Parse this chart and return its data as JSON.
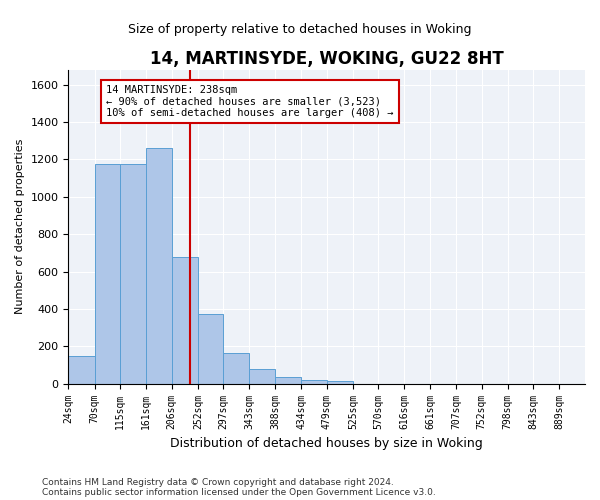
{
  "title": "14, MARTINSYDE, WOKING, GU22 8HT",
  "subtitle": "Size of property relative to detached houses in Woking",
  "xlabel": "Distribution of detached houses by size in Woking",
  "ylabel": "Number of detached properties",
  "bar_color": "#aec6e8",
  "bar_edge_color": "#5a9fd4",
  "background_color": "#eef2f8",
  "grid_color": "#ffffff",
  "annotation_text": "14 MARTINSYDE: 238sqm\n← 90% of detached houses are smaller (3,523)\n10% of semi-detached houses are larger (408) →",
  "vline_x": 238,
  "vline_color": "#cc0000",
  "bin_edges": [
    24,
    70,
    115,
    161,
    206,
    252,
    297,
    343,
    388,
    434,
    479,
    525,
    570,
    616,
    661,
    707,
    752,
    798,
    843,
    889,
    934
  ],
  "bar_heights": [
    150,
    1175,
    1175,
    1260,
    680,
    375,
    165,
    80,
    35,
    20,
    15,
    0,
    0,
    0,
    0,
    0,
    0,
    0,
    0,
    0
  ],
  "ylim": [
    0,
    1680
  ],
  "yticks": [
    0,
    200,
    400,
    600,
    800,
    1000,
    1200,
    1400,
    1600
  ],
  "footnote": "Contains HM Land Registry data © Crown copyright and database right 2024.\nContains public sector information licensed under the Open Government Licence v3.0.",
  "figsize": [
    6.0,
    5.0
  ],
  "dpi": 100
}
